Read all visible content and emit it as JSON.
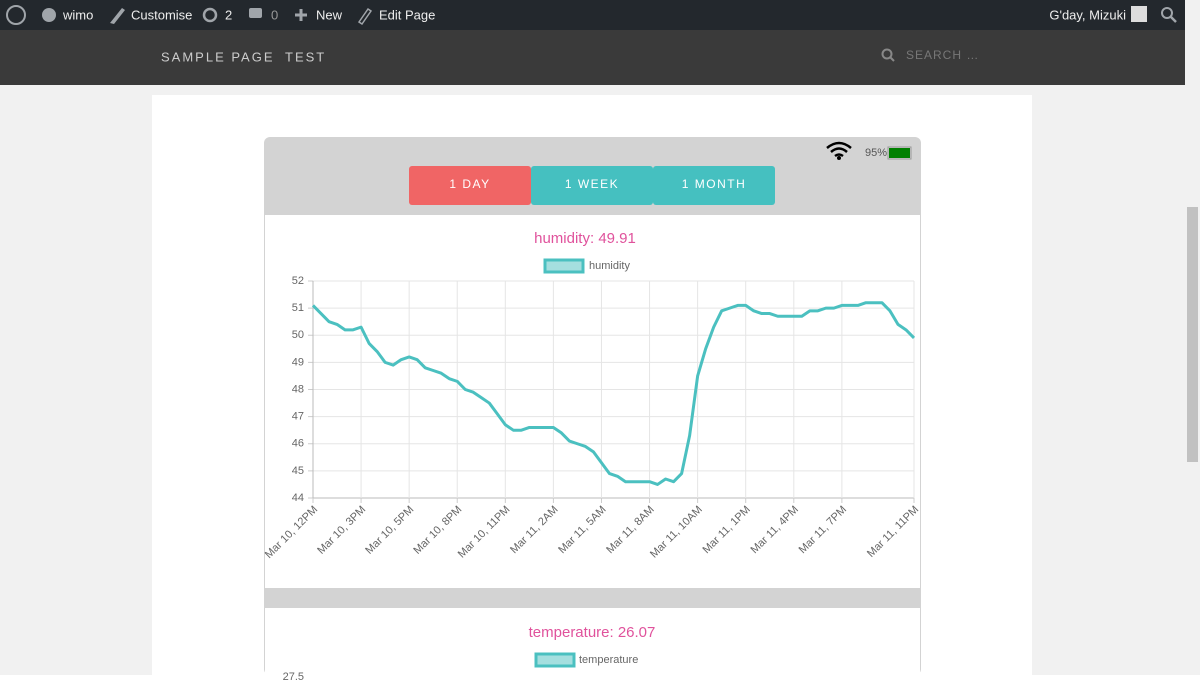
{
  "admin_bar": {
    "site": "wimo",
    "customise": "Customise",
    "updates": "2",
    "comments": "0",
    "new": "New",
    "edit": "Edit Page",
    "greeting": "G'day, Mizuki"
  },
  "nav": {
    "items": [
      "SAMPLE PAGE",
      "TEST"
    ],
    "search": "SEARCH …"
  },
  "status": {
    "battery": "95%"
  },
  "tabs": [
    "1 DAY",
    "1 WEEK",
    "1 MONTH"
  ],
  "chart_data": [
    {
      "type": "line",
      "title": "humidity: 49.91",
      "categories": [
        "Mar 10, 12PM",
        null,
        null,
        null,
        null,
        null,
        "Mar 10, 3PM",
        null,
        null,
        null,
        null,
        null,
        "Mar 10, 5PM",
        null,
        null,
        null,
        null,
        null,
        "Mar 10, 8PM",
        null,
        null,
        null,
        null,
        null,
        "Mar 10, 11PM",
        null,
        null,
        null,
        null,
        null,
        "Mar 11, 2AM",
        null,
        null,
        null,
        null,
        null,
        "Mar 11, 5AM",
        null,
        null,
        null,
        null,
        null,
        "Mar 11, 8AM",
        null,
        null,
        null,
        null,
        null,
        "Mar 11, 10AM",
        null,
        null,
        null,
        null,
        null,
        "Mar 11, 1PM",
        null,
        null,
        null,
        null,
        null,
        "Mar 11, 4PM",
        null,
        null,
        null,
        null,
        null,
        "Mar 11, 7PM",
        null,
        null,
        null,
        null,
        null,
        null,
        null,
        null,
        "Mar 11, 11PM"
      ],
      "series": [
        {
          "name": "humidity",
          "color": "#4bc0c0",
          "values": [
            51.1,
            50.8,
            50.5,
            50.4,
            50.2,
            50.2,
            50.3,
            49.7,
            49.4,
            49.0,
            48.9,
            49.1,
            49.2,
            49.1,
            48.8,
            48.7,
            48.6,
            48.4,
            48.3,
            48.0,
            47.9,
            47.7,
            47.5,
            47.1,
            46.7,
            46.5,
            46.5,
            46.6,
            46.6,
            46.6,
            46.6,
            46.4,
            46.1,
            46.0,
            45.9,
            45.7,
            45.3,
            44.9,
            44.8,
            44.6,
            44.6,
            44.6,
            44.6,
            44.5,
            44.7,
            44.6,
            44.9,
            46.3,
            48.5,
            49.5,
            50.3,
            50.9,
            51.0,
            51.1,
            51.1,
            50.9,
            50.8,
            50.8,
            50.7,
            50.7,
            50.7,
            50.7,
            50.9,
            50.9,
            51.0,
            51.0,
            51.1,
            51.1,
            51.1,
            51.2,
            51.2,
            51.2,
            50.9,
            50.4,
            50.2,
            49.9
          ]
        }
      ],
      "ylim": [
        44,
        52
      ],
      "yticks": [
        44,
        45,
        46,
        47,
        48,
        49,
        50,
        51,
        52
      ],
      "grid": true
    },
    {
      "type": "line",
      "title": "temperature: 26.07",
      "series": [
        {
          "name": "temperature",
          "color": "#4bc0c0",
          "values": []
        }
      ],
      "yticks": [
        27.5
      ]
    }
  ]
}
